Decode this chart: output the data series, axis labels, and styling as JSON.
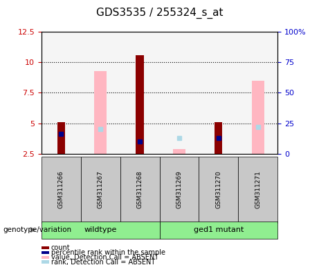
{
  "title": "GDS3535 / 255324_s_at",
  "samples": [
    "GSM311266",
    "GSM311267",
    "GSM311268",
    "GSM311269",
    "GSM311270",
    "GSM311271"
  ],
  "groups": [
    {
      "name": "wildtype",
      "samples": [
        "GSM311266",
        "GSM311267",
        "GSM311268"
      ],
      "color": "#90EE90"
    },
    {
      "name": "ged1 mutant",
      "samples": [
        "GSM311269",
        "GSM311270",
        "GSM311271"
      ],
      "color": "#00FF00"
    }
  ],
  "ylim_left": [
    2.5,
    12.5
  ],
  "ylim_right": [
    0,
    100
  ],
  "yticks_left": [
    2.5,
    5.0,
    7.5,
    10.0,
    12.5
  ],
  "yticks_right": [
    0,
    25,
    50,
    75,
    100
  ],
  "ytick_labels_left": [
    "2.5",
    "5",
    "7.5",
    "10",
    "12.5"
  ],
  "ytick_labels_right": [
    "0",
    "25",
    "50",
    "75",
    "100%"
  ],
  "red_bars": {
    "GSM311266": [
      2.5,
      5.1
    ],
    "GSM311267": [
      2.5,
      2.5
    ],
    "GSM311268": [
      2.5,
      10.6
    ],
    "GSM311269": [
      2.5,
      2.5
    ],
    "GSM311270": [
      2.5,
      5.1
    ],
    "GSM311271": [
      2.5,
      2.5
    ]
  },
  "pink_bars": {
    "GSM311266": null,
    "GSM311267": [
      2.5,
      9.3
    ],
    "GSM311268": null,
    "GSM311269": [
      2.5,
      2.9
    ],
    "GSM311270": null,
    "GSM311271": [
      2.5,
      8.5
    ]
  },
  "blue_dots": {
    "GSM311266": 4.1,
    "GSM311267": null,
    "GSM311268": 3.5,
    "GSM311269": null,
    "GSM311270": 3.8,
    "GSM311271": null
  },
  "light_blue_dots": {
    "GSM311266": null,
    "GSM311267": 4.5,
    "GSM311268": null,
    "GSM311269": 3.8,
    "GSM311270": null,
    "GSM311271": 4.7
  },
  "bar_width": 0.4,
  "red_color": "#8B0000",
  "pink_color": "#FFB6C1",
  "blue_color": "#00008B",
  "light_blue_color": "#ADD8E6",
  "grid_color": "#000000",
  "bg_color": "#D3D3D3",
  "left_axis_color": "#CC0000",
  "right_axis_color": "#0000CC"
}
